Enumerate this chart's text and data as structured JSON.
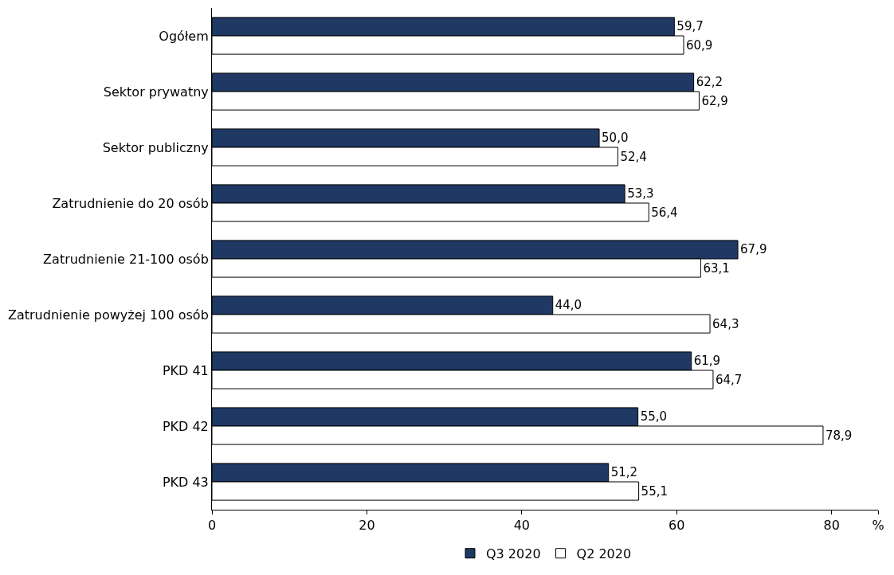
{
  "chart_data": {
    "type": "bar",
    "orientation": "horizontal",
    "categories": [
      "Ogółem",
      "Sektor prywatny",
      "Sektor publiczny",
      "Zatrudnienie do 20 osób",
      "Zatrudnienie 21-100 osób",
      "Zatrudnienie powyżej 100 osób",
      "PKD 41",
      "PKD 42",
      "PKD 43"
    ],
    "series": [
      {
        "name": "Q3 2020",
        "color": "#1f3864",
        "values": [
          59.7,
          62.2,
          50.0,
          53.3,
          67.9,
          44.0,
          61.9,
          55.0,
          51.2
        ],
        "value_labels": [
          "59,7",
          "62,2",
          "50,0",
          "53,3",
          "67,9",
          "44,0",
          "61,9",
          "55,0",
          "51,2"
        ]
      },
      {
        "name": "Q2 2020",
        "color": "#ffffff",
        "values": [
          60.9,
          62.9,
          52.4,
          56.4,
          63.1,
          64.3,
          64.7,
          78.9,
          55.1
        ],
        "value_labels": [
          "60,9",
          "62,9",
          "52,4",
          "56,4",
          "63,1",
          "64,3",
          "64,7",
          "78,9",
          "55,1"
        ]
      }
    ],
    "xlim": [
      0,
      86
    ],
    "xticks": [
      0,
      20,
      40,
      60,
      80,
      {
        "value": 86,
        "label": "%"
      }
    ],
    "legend": "bottom"
  }
}
